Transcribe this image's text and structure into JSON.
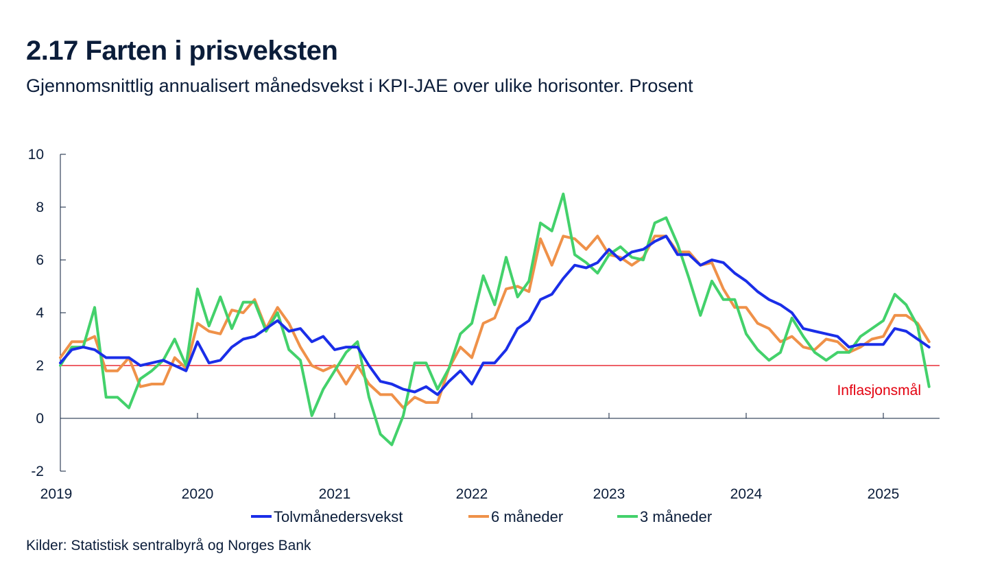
{
  "header": {
    "title": "2.17 Farten i prisveksten",
    "subtitle": "Gjennomsnittlig annualisert månedsvekst i KPI-JAE over ulike horisonter. Prosent"
  },
  "footer": {
    "source": "Kilder: Statistisk sentralbyrå og Norges Bank"
  },
  "chart_data": {
    "type": "line",
    "title": "2.17 Farten i prisveksten",
    "subtitle": "Gjennomsnittlig annualisert månedsvekst i KPI-JAE over ulike horisonter. Prosent",
    "xlabel": "",
    "ylabel": "",
    "x_start": "2019-01",
    "x_ticks": [
      "2019",
      "2020",
      "2021",
      "2022",
      "2023",
      "2024",
      "2025"
    ],
    "y_ticks": [
      "10",
      "8",
      "6",
      "4",
      "2",
      "0",
      "-2"
    ],
    "ylim": [
      -2,
      10
    ],
    "reference_line": {
      "value": 2,
      "label": "Inflasjonsmål",
      "color": "#e3000f"
    },
    "series": [
      {
        "name": "Tolvmånedersvekst",
        "color": "#1a2ee8",
        "values": [
          2.1,
          2.6,
          2.7,
          2.6,
          2.3,
          2.3,
          2.3,
          2.0,
          2.1,
          2.2,
          2.0,
          1.8,
          2.9,
          2.1,
          2.2,
          2.7,
          3.0,
          3.1,
          3.4,
          3.7,
          3.3,
          3.4,
          2.9,
          3.1,
          2.6,
          2.7,
          2.7,
          2.0,
          1.4,
          1.3,
          1.1,
          1.0,
          1.2,
          0.9,
          1.4,
          1.8,
          1.3,
          2.1,
          2.1,
          2.6,
          3.4,
          3.7,
          4.5,
          4.7,
          5.3,
          5.8,
          5.7,
          5.9,
          6.4,
          6.0,
          6.3,
          6.4,
          6.7,
          6.9,
          6.2,
          6.2,
          5.8,
          6.0,
          5.9,
          5.5,
          5.2,
          4.8,
          4.5,
          4.3,
          4.0,
          3.4,
          3.3,
          3.2,
          3.1,
          2.7,
          2.8,
          2.8,
          2.8,
          3.4,
          3.3,
          3.0,
          2.7
        ]
      },
      {
        "name": "6 måneder",
        "color": "#ef9149",
        "values": [
          2.3,
          2.9,
          2.9,
          3.1,
          1.8,
          1.8,
          2.3,
          1.2,
          1.3,
          1.3,
          2.3,
          1.9,
          3.6,
          3.3,
          3.2,
          4.1,
          4.0,
          4.5,
          3.4,
          4.2,
          3.6,
          2.7,
          2.0,
          1.8,
          2.0,
          1.3,
          2.0,
          1.3,
          0.9,
          0.9,
          0.4,
          0.8,
          0.6,
          0.6,
          1.9,
          2.7,
          2.3,
          3.6,
          3.8,
          4.9,
          5.0,
          4.8,
          6.8,
          5.8,
          6.9,
          6.8,
          6.4,
          6.9,
          6.2,
          6.1,
          5.8,
          6.1,
          6.9,
          6.9,
          6.3,
          6.3,
          5.8,
          5.9,
          4.9,
          4.2,
          4.2,
          3.6,
          3.4,
          2.9,
          3.1,
          2.7,
          2.6,
          3.0,
          2.9,
          2.5,
          2.7,
          3.0,
          3.1,
          3.9,
          3.9,
          3.6,
          2.9
        ]
      },
      {
        "name": "3 måneder",
        "color": "#43d16b",
        "values": [
          2.0,
          2.7,
          2.7,
          4.2,
          0.8,
          0.8,
          0.4,
          1.5,
          1.8,
          2.2,
          3.0,
          2.0,
          4.9,
          3.5,
          4.6,
          3.4,
          4.4,
          4.4,
          3.3,
          4.0,
          2.6,
          2.2,
          0.1,
          1.1,
          1.8,
          2.5,
          2.9,
          0.8,
          -0.6,
          -1.0,
          0.1,
          2.1,
          2.1,
          1.1,
          1.9,
          3.2,
          3.6,
          5.4,
          4.3,
          6.1,
          4.6,
          5.2,
          7.4,
          7.1,
          8.5,
          6.2,
          5.9,
          5.5,
          6.2,
          6.5,
          6.1,
          6.0,
          7.4,
          7.6,
          6.6,
          5.3,
          3.9,
          5.2,
          4.5,
          4.5,
          3.2,
          2.6,
          2.2,
          2.5,
          3.8,
          3.1,
          2.5,
          2.2,
          2.5,
          2.5,
          3.1,
          3.4,
          3.7,
          4.7,
          4.3,
          3.5,
          1.2
        ]
      }
    ]
  }
}
